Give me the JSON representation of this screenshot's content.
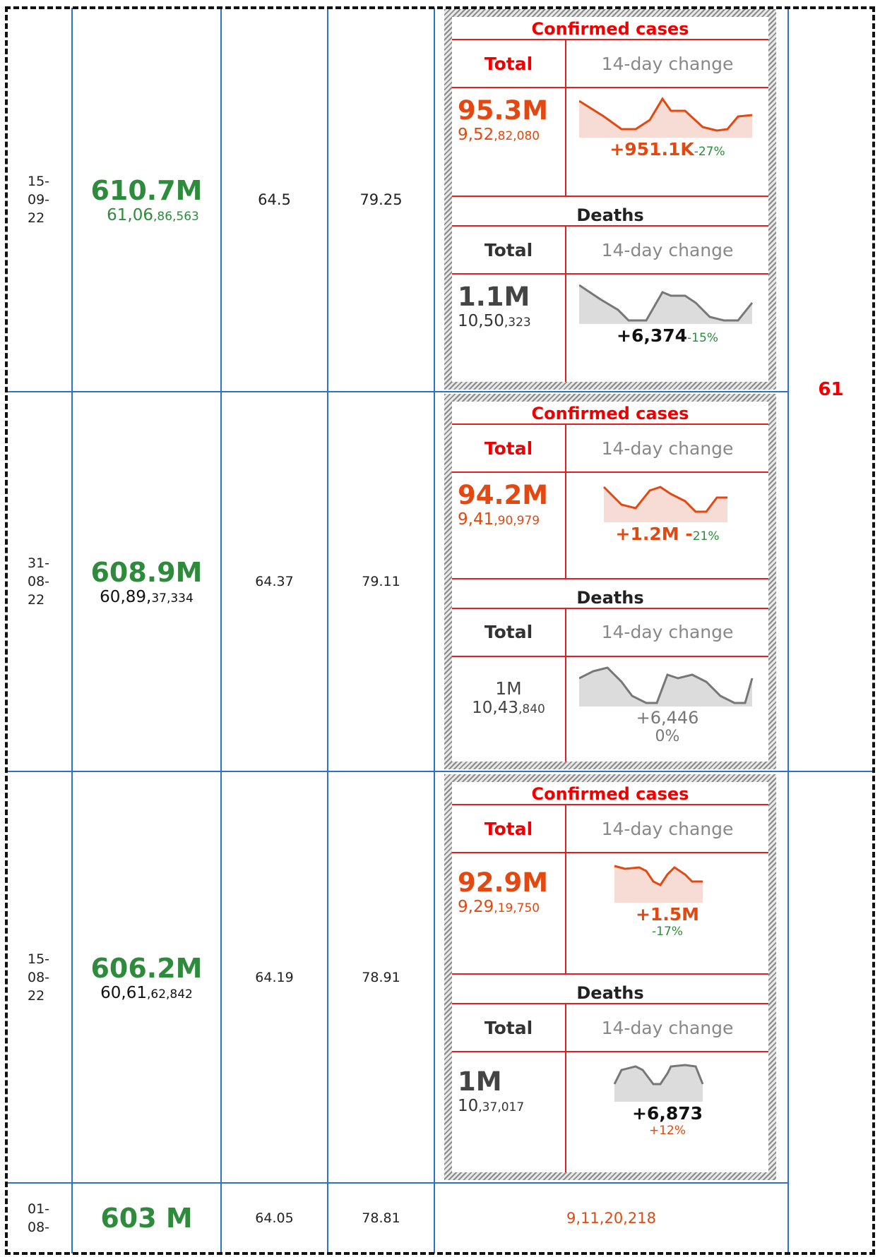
{
  "rows": [
    {
      "date": [
        "15-",
        "09-",
        "22"
      ],
      "total": "610.7M",
      "full": [
        "61,06",
        ",86,563"
      ],
      "v1": "64.5",
      "v2": "79.25",
      "cases": {
        "total": "95.3M",
        "full": [
          "9,52",
          ",82,080"
        ],
        "change": "+951.1K",
        "pct": "-27%"
      },
      "deaths": {
        "total": "1.1M",
        "full": [
          "10,50",
          ",323"
        ],
        "change": "+6,374",
        "pct": "-15%"
      }
    },
    {
      "date": [
        "31-",
        "08-",
        "22"
      ],
      "total": "608.9M",
      "full": [
        "60,89,",
        "37,334"
      ],
      "v1": "64.37",
      "v2": "79.11",
      "cases": {
        "total": "94.2M",
        "full": [
          "9,41",
          ",90,979"
        ],
        "change": "+1.2M -",
        "pct": "21%"
      },
      "deaths": {
        "total": "1M",
        "full": [
          "10,43",
          ",840"
        ],
        "change": "+6,446",
        "pct": "0%"
      }
    },
    {
      "date": [
        "15-",
        "08-",
        "22"
      ],
      "total": "606.2M",
      "full": [
        "60,61",
        ",62,842"
      ],
      "v1": "64.19",
      "v2": "78.91",
      "cases": {
        "total": "92.9M",
        "full": [
          "9,29",
          ",19,750"
        ],
        "change": "+1.5M",
        "pct": "-17%"
      },
      "deaths": {
        "total": "1M",
        "full": [
          "10",
          ",37,017"
        ],
        "change": "+6,873",
        "pct": "+12%"
      }
    },
    {
      "date": [
        "01-",
        "08-"
      ],
      "total": "603 M",
      "v1": "64.05",
      "v2": "78.81",
      "cases_total": "9,11,20,218"
    }
  ],
  "labels": {
    "cases": "Confirmed cases",
    "deaths": "Deaths",
    "total": "Total",
    "change": "14-day change"
  },
  "merged": "61"
}
